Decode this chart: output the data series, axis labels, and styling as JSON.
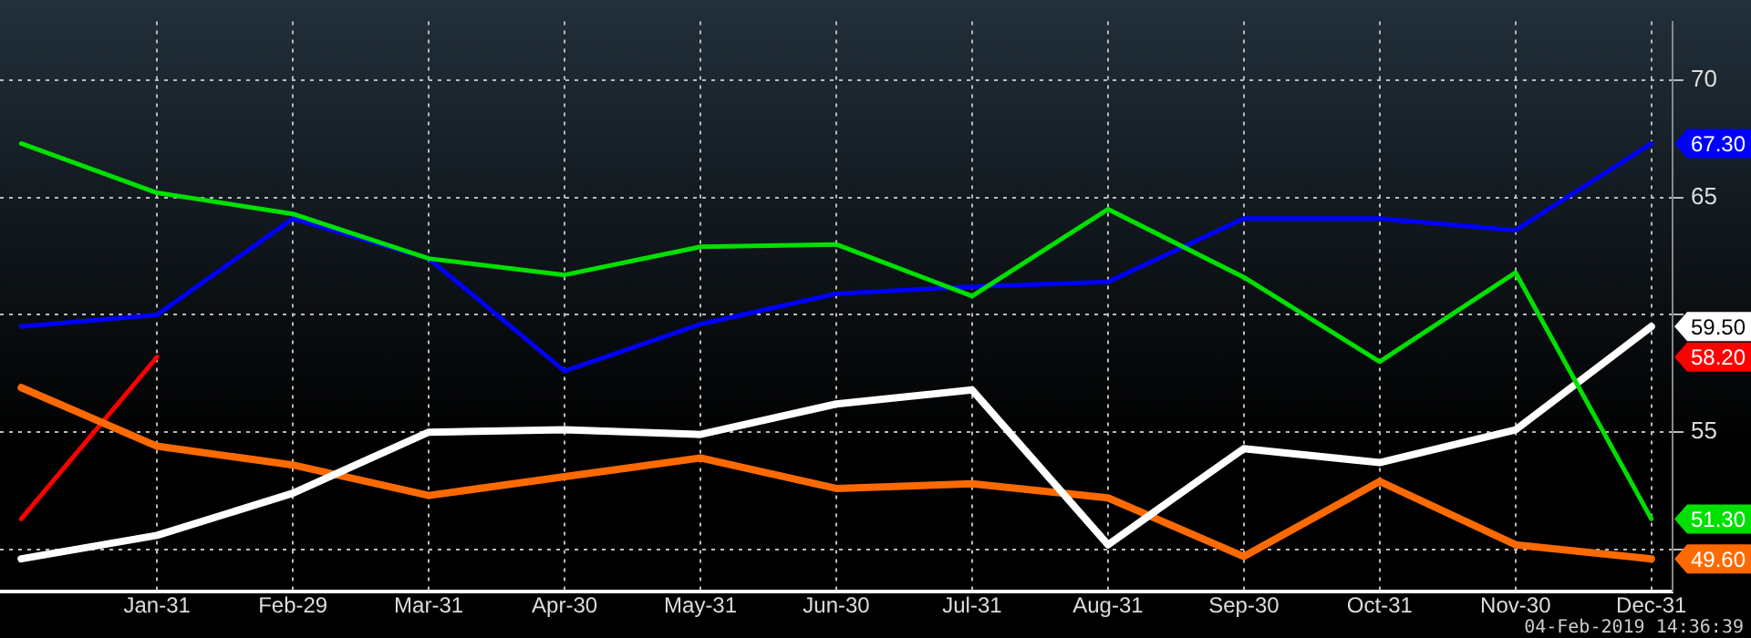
{
  "chart_data": {
    "type": "line",
    "categories": [
      null,
      "Jan-31",
      "Feb-29",
      "Mar-31",
      "Apr-30",
      "May-31",
      "Jun-30",
      "Jul-31",
      "Aug-31",
      "Sep-30",
      "Oct-31",
      "Nov-30",
      "Dec-31"
    ],
    "series": [
      {
        "color": "#00e000",
        "values": [
          67.3,
          65.2,
          64.3,
          62.4,
          61.7,
          62.9,
          63.0,
          60.8,
          64.5,
          61.6,
          58.0,
          61.8,
          51.3
        ],
        "value_labels": [
          null,
          null,
          null,
          null,
          null,
          null,
          null,
          null,
          null,
          null,
          null,
          null,
          "51.30"
        ]
      },
      {
        "color": "#0000ff",
        "values": [
          59.5,
          60.0,
          64.1,
          62.4,
          57.6,
          59.6,
          60.9,
          61.2,
          61.4,
          64.1,
          64.1,
          63.6,
          67.3
        ],
        "value_labels": [
          null,
          null,
          null,
          null,
          null,
          null,
          null,
          null,
          null,
          null,
          null,
          null,
          "67.30"
        ]
      },
      {
        "color": "#ffffff",
        "values": [
          49.6,
          50.6,
          52.4,
          55.0,
          55.1,
          54.9,
          56.2,
          56.8,
          50.2,
          54.3,
          53.7,
          55.1,
          59.5
        ],
        "value_labels": [
          null,
          null,
          null,
          null,
          null,
          null,
          null,
          null,
          null,
          null,
          null,
          null,
          "59.50"
        ]
      },
      {
        "color": "#ff6a00",
        "values": [
          56.9,
          54.4,
          53.6,
          52.3,
          53.1,
          53.9,
          52.6,
          52.8,
          52.2,
          49.7,
          52.9,
          50.2,
          49.6
        ],
        "value_labels": [
          null,
          null,
          null,
          null,
          null,
          null,
          null,
          null,
          null,
          null,
          null,
          null,
          "49.60"
        ]
      },
      {
        "color": "#ff0000",
        "values": [
          51.3,
          58.2,
          null,
          null,
          null,
          null,
          null,
          null,
          null,
          null,
          null,
          null,
          null
        ]
      }
    ],
    "ylim": [
      48.2,
      72.5
    ],
    "yticks": [
      {
        "value": 50,
        "label": null
      },
      55,
      {
        "value": 60,
        "label": null
      },
      65,
      70
    ],
    "grid": true,
    "legend": false,
    "marker": "none",
    "line_style": "solid",
    "annotations": [
      "04-Feb-2019 14:36:39",
      "58.20"
    ]
  }
}
